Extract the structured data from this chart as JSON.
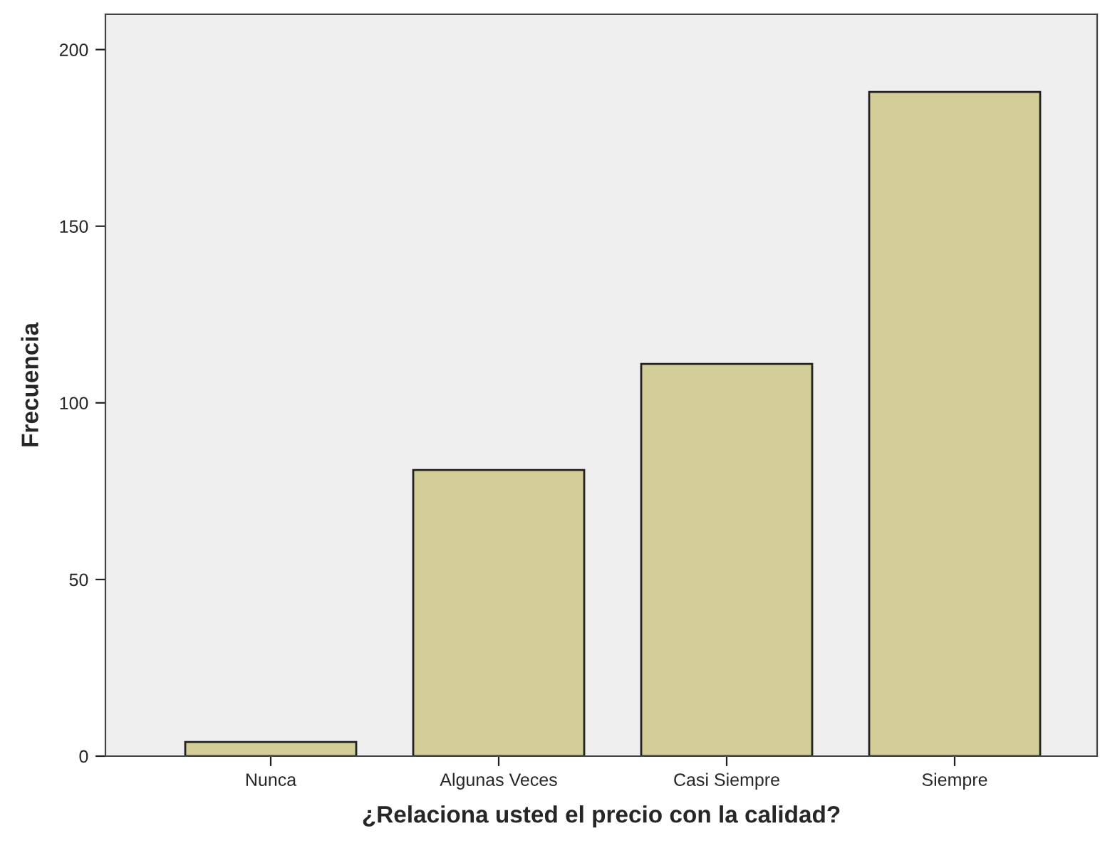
{
  "chart_data": {
    "type": "bar",
    "xlabel": "¿Relaciona usted el precio con la calidad?",
    "ylabel": "Frecuencia",
    "categories": [
      "Nunca",
      "Algunas Veces",
      "Casi Siempre",
      "Siempre"
    ],
    "values": [
      4,
      81,
      111,
      188
    ],
    "color": "#d3ce97",
    "ylim": [
      0,
      210
    ],
    "yticks": [
      0,
      50,
      100,
      150,
      200
    ],
    "grid": false,
    "legend": false
  }
}
